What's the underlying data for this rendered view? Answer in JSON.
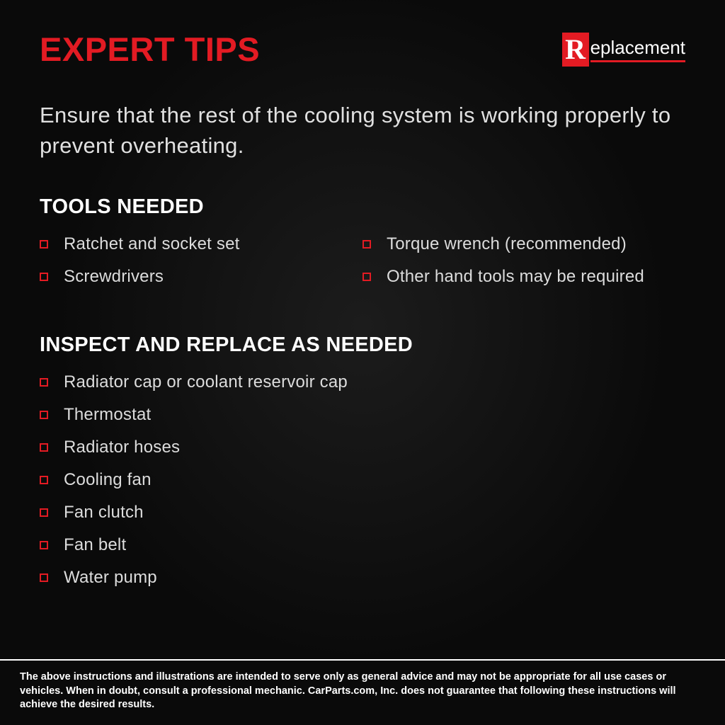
{
  "colors": {
    "accent": "#e31b23",
    "background": "#0a0a0a",
    "text_primary": "#e8e8e8",
    "text_heading": "#ffffff",
    "disclaimer_border": "#ffffff"
  },
  "typography": {
    "title_fontsize": 47,
    "title_weight": 800,
    "intro_fontsize": 31,
    "intro_weight": 300,
    "heading_fontsize": 29,
    "heading_weight": 800,
    "item_fontsize": 24,
    "item_weight": 300,
    "disclaimer_fontsize": 14.5,
    "disclaimer_weight": 700
  },
  "header": {
    "title": "EXPERT TIPS",
    "logo_initial": "R",
    "logo_rest": "eplacement"
  },
  "intro": "Ensure that the rest of the cooling system is working properly to prevent overheating.",
  "sections": {
    "tools": {
      "heading": "TOOLS NEEDED",
      "left": [
        "Ratchet and socket set",
        "Screwdrivers"
      ],
      "right": [
        "Torque wrench (recommended)",
        "Other hand tools may be required"
      ]
    },
    "inspect": {
      "heading": "INSPECT AND REPLACE AS NEEDED",
      "items": [
        "Radiator cap or coolant reservoir cap",
        "Thermostat",
        "Radiator hoses",
        "Cooling fan",
        "Fan clutch",
        "Fan belt",
        "Water pump"
      ]
    }
  },
  "disclaimer": "The above instructions and illustrations are intended to serve only as general advice and may not be appropriate for all use cases or vehicles. When in doubt, consult a professional mechanic. CarParts.com, Inc. does not guarantee that following these instructions will achieve the desired results."
}
